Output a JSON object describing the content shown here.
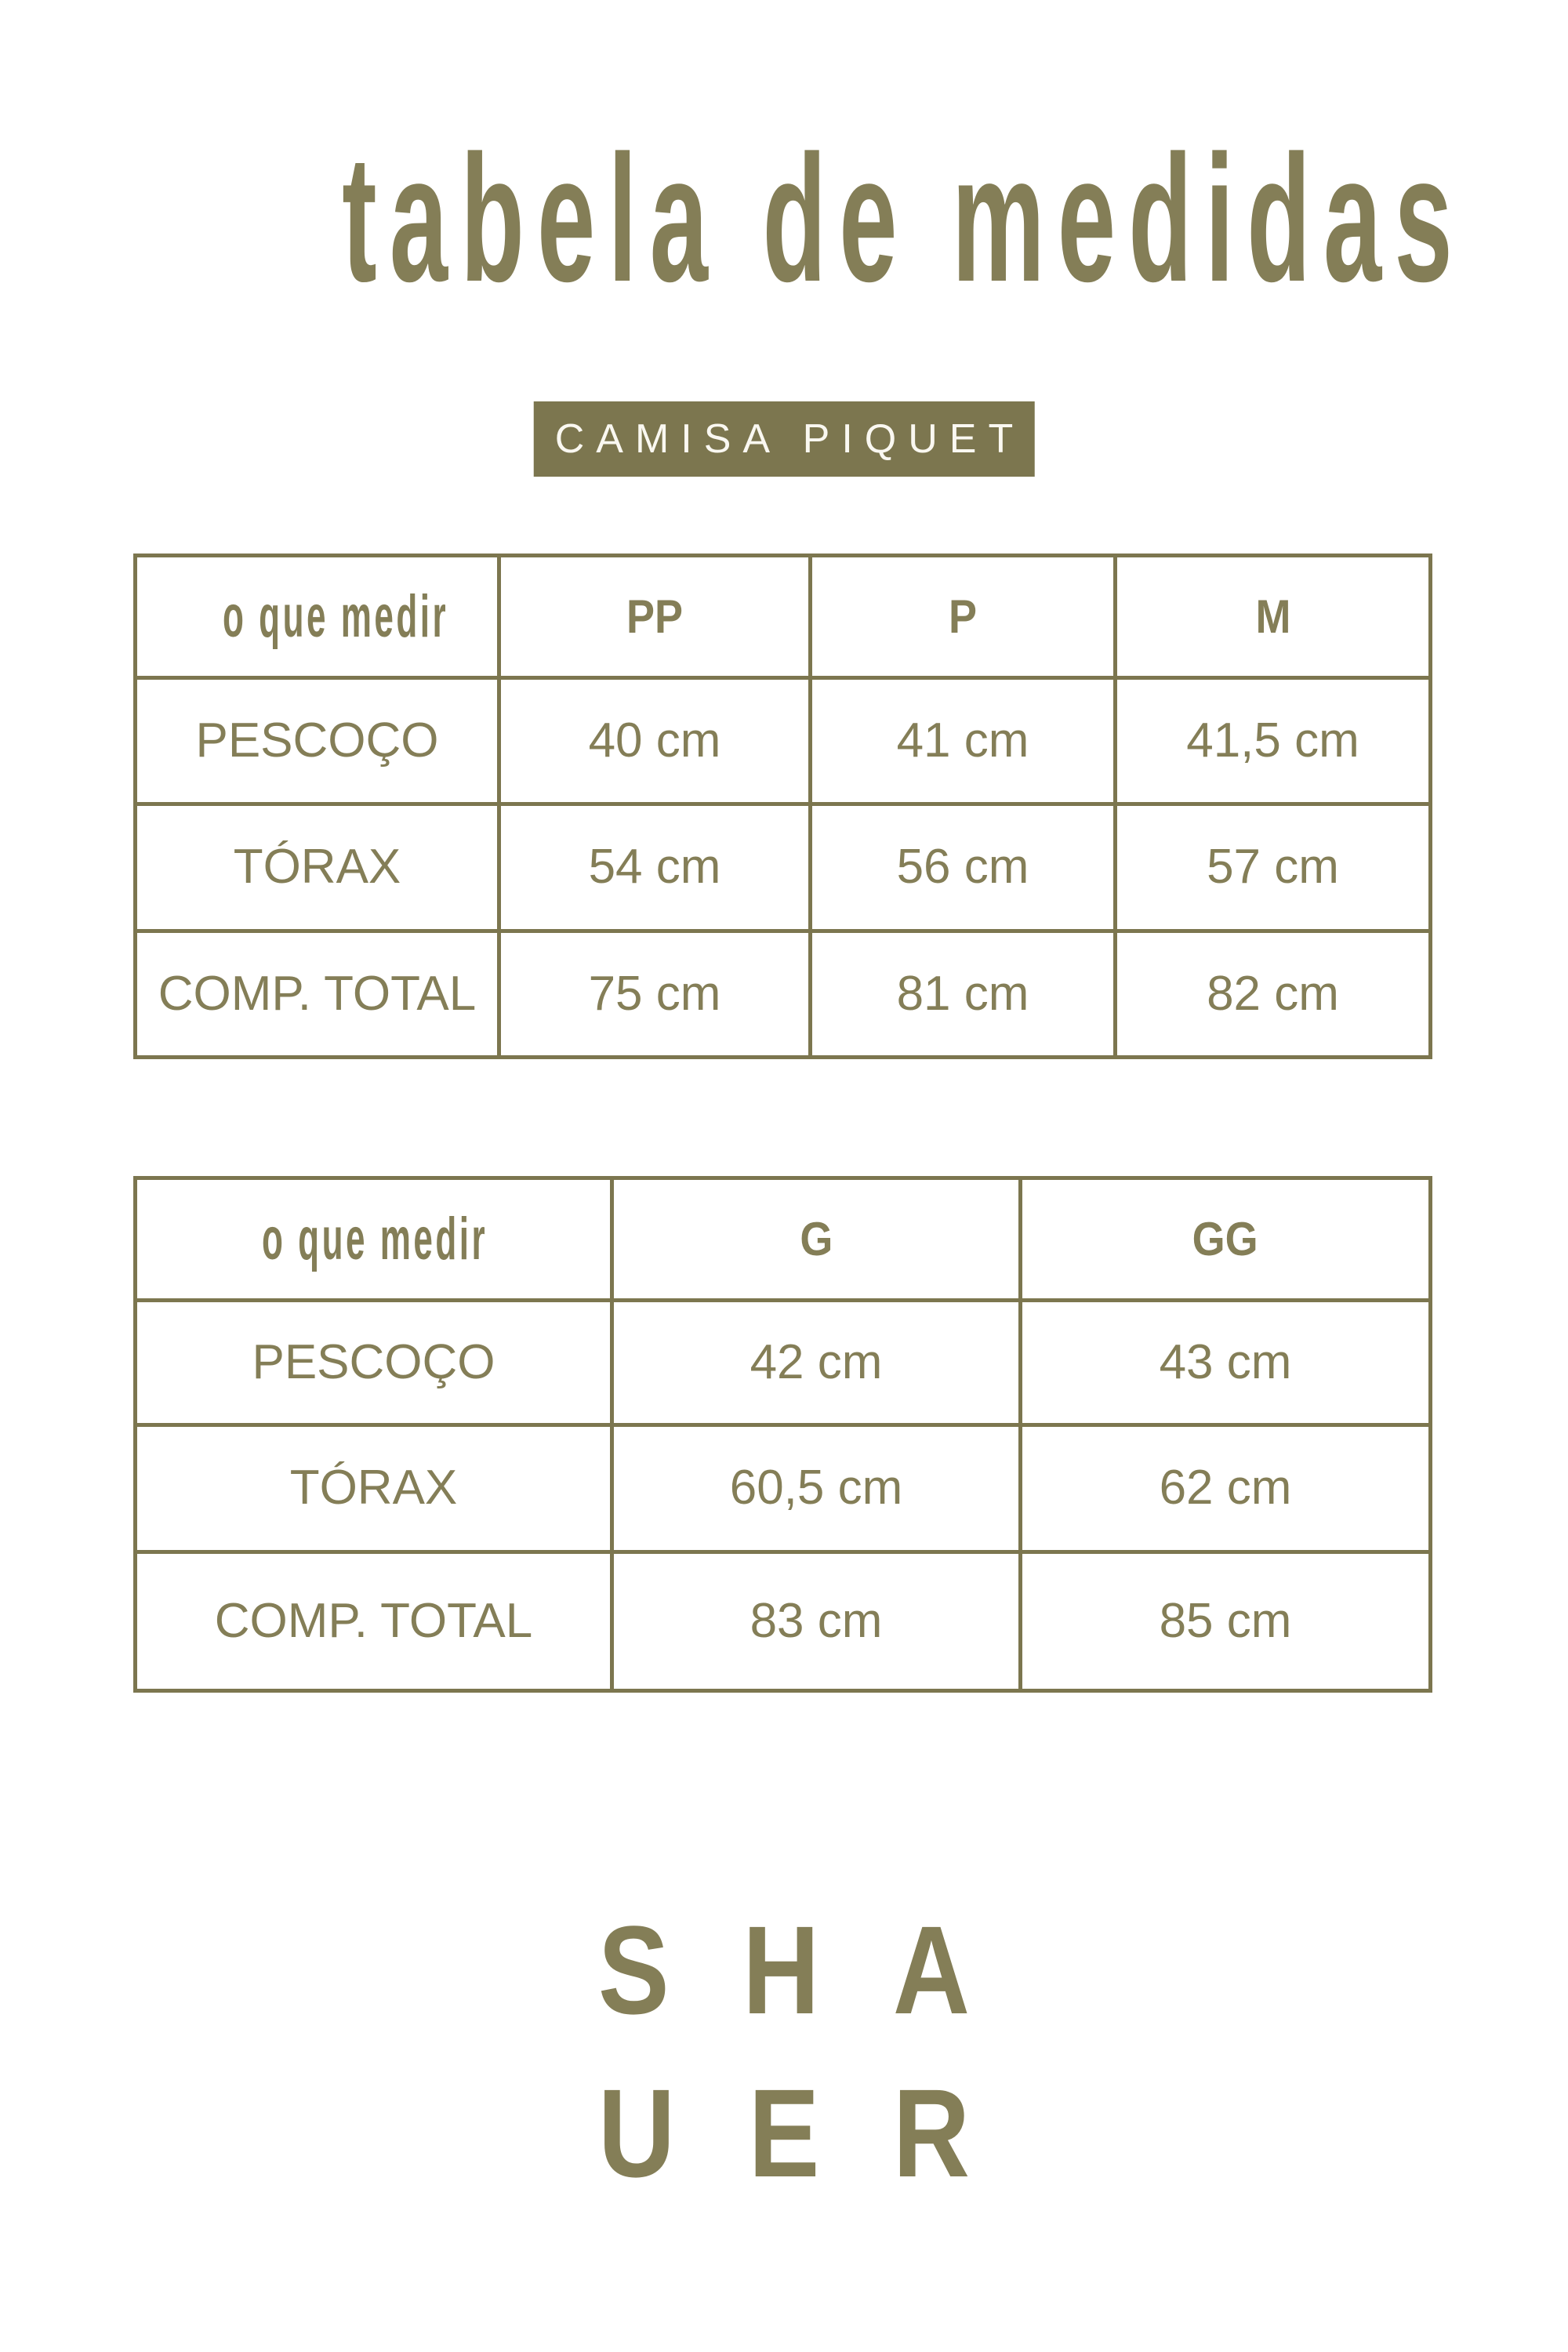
{
  "header": {
    "title": "tabela de medidas",
    "badge": "CAMISA PIQUET"
  },
  "colors": {
    "background": "#FFFFFF",
    "ink": "#847E57",
    "line": "#7C764F",
    "badge_bg": "#7C764F",
    "badge_text": "#FAF8F1"
  },
  "tables": [
    {
      "name": "sizes-pp-p-m",
      "headers": [
        "o que medir",
        "PP",
        "P",
        "M"
      ],
      "rows": [
        [
          "PESCOÇO",
          "40 cm",
          "41 cm",
          "41,5 cm"
        ],
        [
          "TÓRAX",
          "54 cm",
          "56 cm",
          "57 cm"
        ],
        [
          "COMP. TOTAL",
          "75 cm",
          "81 cm",
          "82 cm"
        ]
      ]
    },
    {
      "name": "sizes-g-gg",
      "headers": [
        "o que medir",
        "G",
        "GG"
      ],
      "rows": [
        [
          "PESCOÇO",
          "42 cm",
          "43 cm"
        ],
        [
          "TÓRAX",
          "60,5 cm",
          "62 cm"
        ],
        [
          "COMP. TOTAL",
          "83 cm",
          "85 cm"
        ]
      ]
    }
  ],
  "brand": {
    "line1": "SHA",
    "line2": "UER"
  }
}
